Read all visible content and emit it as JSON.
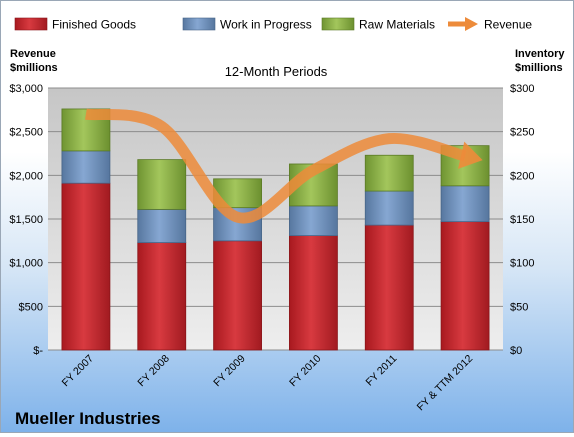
{
  "chart_data": {
    "type": "bar",
    "subtitle": "12-Month Periods",
    "company": "Mueller Industries",
    "left_axis_title": [
      "Revenue",
      "$millions"
    ],
    "right_axis_title": [
      "Inventory",
      "$millions"
    ],
    "categories": [
      "FY 2007",
      "FY 2008",
      "FY 2009",
      "FY 2010",
      "FY 2011",
      "FY & TTM 2012"
    ],
    "left_ticks": [
      "$-",
      "$500",
      "$1,000",
      "$1,500",
      "$2,000",
      "$2,500",
      "$3,000"
    ],
    "right_ticks": [
      "$0",
      "$50",
      "$100",
      "$150",
      "$200",
      "$250",
      "$300"
    ],
    "ylim_left": [
      0,
      3000
    ],
    "ylim_right": [
      0,
      300
    ],
    "legend_position": "top",
    "series": [
      {
        "name": "Finished Goods",
        "type": "stacked-bar",
        "axis": "right",
        "color": "#c0282e",
        "values": [
          191,
          123,
          125,
          131,
          143,
          147
        ]
      },
      {
        "name": "Work in Progress",
        "type": "stacked-bar",
        "axis": "right",
        "color": "#6d8fbf",
        "values": [
          37,
          38,
          38,
          34,
          39,
          41
        ]
      },
      {
        "name": "Raw Materials",
        "type": "stacked-bar",
        "axis": "right",
        "color": "#8eb347",
        "values": [
          48,
          57,
          33,
          48,
          41,
          46
        ]
      },
      {
        "name": "Revenue",
        "type": "line",
        "axis": "left",
        "color": "#ed8b3a",
        "values": [
          2700,
          2560,
          1520,
          2060,
          2420,
          2220
        ]
      }
    ]
  }
}
